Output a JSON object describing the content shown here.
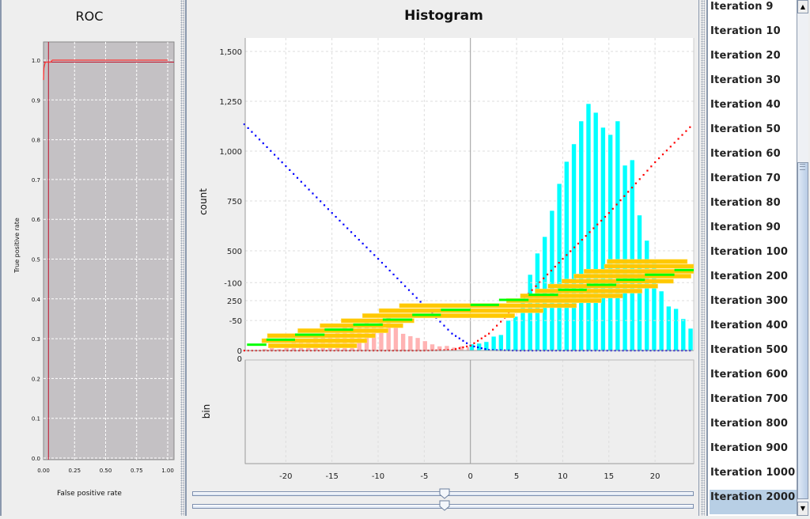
{
  "roc": {
    "title": "ROC",
    "xlabel": "False positive rate",
    "ylabel": "True positive rate",
    "x_ticks": [
      "0.00",
      "0.25",
      "0.50",
      "0.75",
      "1.00"
    ],
    "y_ticks": [
      "0.0",
      "0.1",
      "0.2",
      "0.3",
      "0.4",
      "0.5",
      "0.6",
      "0.7",
      "0.8",
      "0.9",
      "1.0"
    ],
    "colors": {
      "background": "#c4c1c4",
      "curve": "#ff3333",
      "threshold": "#c0102a"
    }
  },
  "histogram": {
    "title": "Histogram",
    "count_label": "count",
    "bin_label": "bin",
    "count_ticks": [
      "0",
      "250",
      "500",
      "750",
      "1,000",
      "1,250",
      "1,500"
    ],
    "bin_ticks": [
      "0",
      "-50",
      "-100"
    ],
    "x_ticks": [
      "-20",
      "-15",
      "-10",
      "-5",
      "0",
      "5",
      "10",
      "15",
      "20"
    ]
  },
  "chart_data": [
    {
      "type": "line",
      "title": "ROC",
      "xlabel": "False positive rate",
      "ylabel": "True positive rate",
      "xlim": [
        0,
        1.05
      ],
      "ylim": [
        0,
        1.05
      ],
      "grid": true,
      "series": [
        {
          "points": [
            [
              0,
              0.95
            ],
            [
              0.003,
              0.98
            ],
            [
              0.01,
              0.99
            ],
            [
              0.015,
              0.995
            ],
            [
              0.06,
              0.995
            ],
            [
              0.07,
              1.0
            ],
            [
              1.0,
              1.0
            ]
          ],
          "color": "#ff3333"
        }
      ],
      "threshold": {
        "fpr": 0.04,
        "tpr": 0.995
      }
    },
    {
      "type": "bar",
      "title": "Histogram",
      "ylabel": "count",
      "xlim": [
        -24.5,
        24.2
      ],
      "ylim": [
        0,
        1500
      ],
      "grid": true,
      "series": [
        {
          "color": "#ffb3b3",
          "x_start": -22.3,
          "x_step": 0.79,
          "values": [
            8,
            13,
            8,
            21,
            41,
            41,
            52,
            77,
            85,
            85,
            95,
            119,
            119,
            116,
            153,
            123,
            157,
            172,
            120,
            85,
            73,
            64,
            48,
            32,
            22,
            24,
            16,
            22,
            18
          ]
        },
        {
          "color": "#00ffff",
          "x_start": 0.15,
          "x_step": 0.79,
          "values": [
            32,
            36,
            44,
            71,
            79,
            151,
            171,
            246,
            381,
            488,
            571,
            702,
            837,
            948,
            1036,
            1151,
            1238,
            1194,
            1119,
            1083,
            1151,
            929,
            956,
            679,
            552,
            448,
            298,
            222,
            210,
            159,
            111
          ]
        }
      ],
      "lines": [
        {
          "color": "#0000ff",
          "style": "dotted",
          "points": [
            [
              -24.5,
              1135
            ],
            [
              -20,
              925
            ],
            [
              -15,
              690
            ],
            [
              -10,
              460
            ],
            [
              -5,
              225
            ],
            [
              -2,
              85
            ],
            [
              0,
              25
            ],
            [
              2,
              3
            ],
            [
              5,
              0
            ],
            [
              24.2,
              0
            ]
          ]
        },
        {
          "color": "#ff0000",
          "style": "dotted",
          "points": [
            [
              -24.5,
              0
            ],
            [
              -5,
              0
            ],
            [
              -2,
              3
            ],
            [
              0,
              25
            ],
            [
              2,
              85
            ],
            [
              5,
              225
            ],
            [
              10,
              460
            ],
            [
              15,
              690
            ],
            [
              20,
              945
            ],
            [
              24.2,
              1140
            ]
          ]
        }
      ]
    },
    {
      "type": "bar",
      "ylabel": "bin",
      "xlim": [
        -24.5,
        24.2
      ],
      "ylim": [
        -140,
        0
      ],
      "grid": true,
      "ranges": {
        "color": "#ffc800",
        "rows": [
          {
            "y": -16.7,
            "x": [
              -21.9,
              -12.3
            ]
          },
          {
            "y": -23.3,
            "x": [
              -22.6,
              -11.2
            ]
          },
          {
            "y": -30,
            "x": [
              -22.0,
              -10.3
            ]
          },
          {
            "y": -36.6,
            "x": [
              -18.7,
              -8.9
            ]
          },
          {
            "y": -43.2,
            "x": [
              -16.3,
              -7.3
            ]
          },
          {
            "y": -49.8,
            "x": [
              -14.0,
              -6.1
            ]
          },
          {
            "y": -56.4,
            "x": [
              -11.7,
              4.8
            ]
          },
          {
            "y": -63,
            "x": [
              -9.9,
              7.9
            ]
          },
          {
            "y": -69.7,
            "x": [
              -7.7,
              11.5
            ]
          },
          {
            "y": -76.3,
            "x": [
              3.9,
              14.2
            ]
          },
          {
            "y": -82.6,
            "x": [
              5.4,
              16.5
            ]
          },
          {
            "y": -89,
            "x": [
              7.0,
              18.6
            ]
          },
          {
            "y": -95.4,
            "x": [
              8.4,
              20.3
            ]
          },
          {
            "y": -102,
            "x": [
              9.9,
              22.0
            ]
          },
          {
            "y": -108.6,
            "x": [
              11.2,
              23.9
            ]
          },
          {
            "y": -115,
            "x": [
              12.3,
              24.2
            ]
          },
          {
            "y": -121.6,
            "x": [
              14.5,
              24.2
            ]
          },
          {
            "y": -128,
            "x": [
              14.8,
              23.5
            ]
          }
        ]
      },
      "bins": {
        "color": "#00ff00",
        "rows": [
          {
            "y": -18.1,
            "x": [
              -24.2,
              -22.1
            ]
          },
          {
            "y": -24.7,
            "x": [
              -22.1,
              -19.0
            ]
          },
          {
            "y": -31.3,
            "x": [
              -19.0,
              -15.8
            ]
          },
          {
            "y": -38,
            "x": [
              -15.8,
              -12.7
            ]
          },
          {
            "y": -44.6,
            "x": [
              -12.7,
              -9.5
            ]
          },
          {
            "y": -51.2,
            "x": [
              -9.5,
              -6.3
            ]
          },
          {
            "y": -57.5,
            "x": [
              -6.3,
              -3.2
            ]
          },
          {
            "y": -64.1,
            "x": [
              -3.2,
              0
            ]
          },
          {
            "y": -70.7,
            "x": [
              0,
              3.1
            ]
          },
          {
            "y": -77.3,
            "x": [
              3.1,
              6.3
            ]
          },
          {
            "y": -84,
            "x": [
              6.3,
              9.5
            ]
          },
          {
            "y": -90.6,
            "x": [
              9.5,
              12.6
            ]
          },
          {
            "y": -97.2,
            "x": [
              12.6,
              15.8
            ]
          },
          {
            "y": -103.8,
            "x": [
              15.8,
              18.9
            ]
          },
          {
            "y": -110.5,
            "x": [
              18.9,
              22.1
            ]
          },
          {
            "y": -116.7,
            "x": [
              22.1,
              24.2
            ]
          }
        ]
      }
    }
  ],
  "sliders": [
    {
      "value_fraction": 0.5
    },
    {
      "value_fraction": 0.5
    }
  ],
  "iterations": {
    "items": [
      "Iteration 9",
      "Iteration 10",
      "Iteration 20",
      "Iteration 30",
      "Iteration 40",
      "Iteration 50",
      "Iteration 60",
      "Iteration 70",
      "Iteration 80",
      "Iteration 90",
      "Iteration 100",
      "Iteration 200",
      "Iteration 300",
      "Iteration 400",
      "Iteration 500",
      "Iteration 600",
      "Iteration 700",
      "Iteration 800",
      "Iteration 900",
      "Iteration 1000",
      "Iteration 2000"
    ],
    "selected": "Iteration 2000",
    "selected_color": "#b8cfe5",
    "scroll_up_icon": "triangle-up",
    "scroll_down_icon": "triangle-down"
  }
}
